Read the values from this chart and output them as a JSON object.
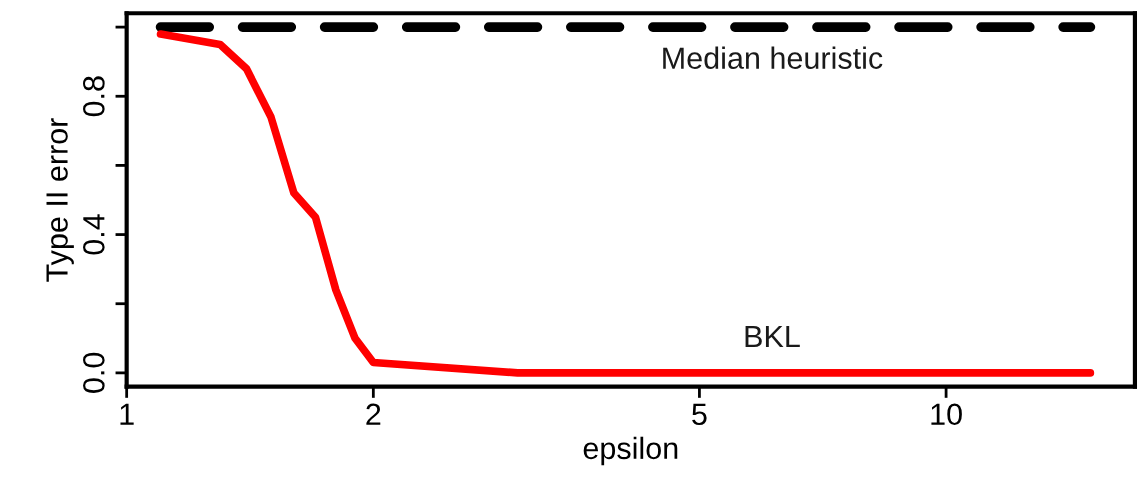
{
  "chart_data": {
    "type": "line",
    "xlabel": "epsilon",
    "ylabel": "Type II error",
    "log": "x",
    "xlim": [
      1,
      17
    ],
    "xticks": [
      1,
      2,
      5,
      10
    ],
    "ylim": [
      -0.04,
      1.04
    ],
    "yticks": [
      {
        "value": 0,
        "label": "0.0"
      },
      {
        "value": 0.2,
        "label": null
      },
      {
        "value": 0.4,
        "label": "0.4"
      },
      {
        "value": 0.6,
        "label": null
      },
      {
        "value": 0.8,
        "label": "0.8"
      },
      {
        "value": 1.0,
        "label": null
      }
    ],
    "grid": false,
    "legend": false,
    "series": [
      {
        "name": "Median heuristic",
        "color": "#000000",
        "line_style": "dashed",
        "x": [
          1.1,
          15
        ],
        "values": [
          1.0,
          1.0
        ]
      },
      {
        "name": "BKL",
        "color": "#ff0000",
        "line_style": "solid",
        "x": [
          1.1,
          1.3,
          1.4,
          1.5,
          1.6,
          1.7,
          1.8,
          1.9,
          2.0,
          3.0,
          15
        ],
        "values": [
          0.98,
          0.95,
          0.88,
          0.74,
          0.52,
          0.45,
          0.24,
          0.1,
          0.03,
          0.0,
          0.0
        ]
      }
    ]
  }
}
